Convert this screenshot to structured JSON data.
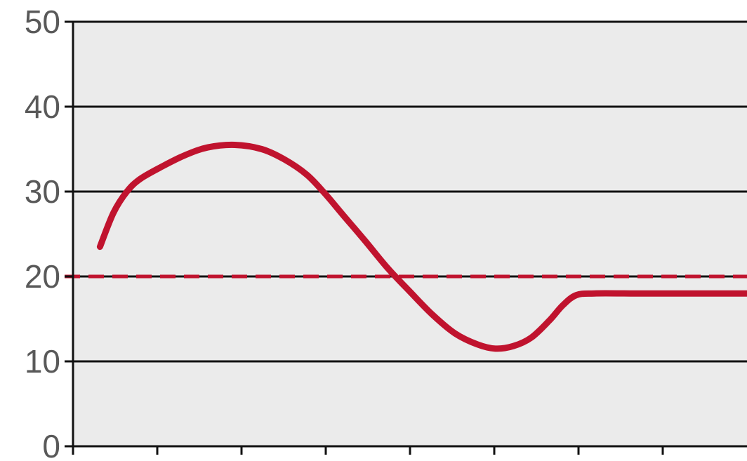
{
  "chart_data": {
    "type": "line",
    "xlim": [
      0,
      7.5
    ],
    "ylim": [
      0,
      50
    ],
    "y_ticks": [
      0,
      10,
      20,
      30,
      40,
      50
    ],
    "y_tick_labels": [
      "0",
      "10",
      "20",
      "30",
      "40",
      "50"
    ],
    "x_tick_count": 8,
    "x_tick_labels": [],
    "grid": true,
    "legend": "none",
    "title": "",
    "xlabel": "",
    "ylabel": "",
    "series": [
      {
        "style": "solid",
        "color": "#c0132e",
        "points": [
          [
            0.3,
            23.5
          ],
          [
            0.45,
            27.5
          ],
          [
            0.6,
            30.0
          ],
          [
            0.75,
            31.5
          ],
          [
            1.0,
            33.0
          ],
          [
            1.25,
            34.3
          ],
          [
            1.5,
            35.2
          ],
          [
            1.8,
            35.5
          ],
          [
            2.1,
            35.0
          ],
          [
            2.35,
            33.8
          ],
          [
            2.6,
            32.0
          ],
          [
            2.8,
            29.8
          ],
          [
            3.0,
            27.3
          ],
          [
            3.25,
            24.2
          ],
          [
            3.5,
            21.0
          ],
          [
            3.75,
            18.2
          ],
          [
            4.0,
            15.5
          ],
          [
            4.25,
            13.3
          ],
          [
            4.5,
            12.0
          ],
          [
            4.7,
            11.5
          ],
          [
            4.9,
            11.8
          ],
          [
            5.1,
            12.8
          ],
          [
            5.3,
            14.8
          ],
          [
            5.45,
            16.6
          ],
          [
            5.6,
            17.8
          ],
          [
            5.8,
            18.0
          ],
          [
            6.2,
            18.0
          ],
          [
            6.6,
            18.0
          ],
          [
            7.2,
            18.0
          ],
          [
            7.5,
            18.0
          ]
        ]
      }
    ],
    "reference_lines": [
      {
        "y": 20,
        "style": "dashed",
        "color": "#c0132e"
      }
    ]
  }
}
